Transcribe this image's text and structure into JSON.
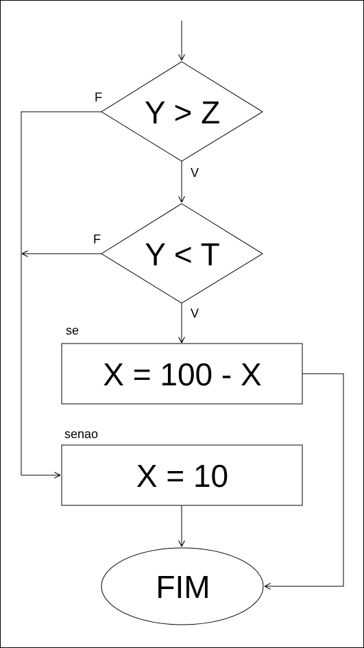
{
  "flowchart": {
    "decisions": [
      {
        "text": "Y > Z",
        "false_label": "F",
        "true_label": "V"
      },
      {
        "text": "Y < T",
        "false_label": "F",
        "true_label": "V"
      }
    ],
    "process_if": {
      "caption": "se",
      "text": "X = 100 - X"
    },
    "process_else": {
      "caption": "senao",
      "text": "X = 10"
    },
    "terminal": {
      "text": "FIM"
    }
  }
}
